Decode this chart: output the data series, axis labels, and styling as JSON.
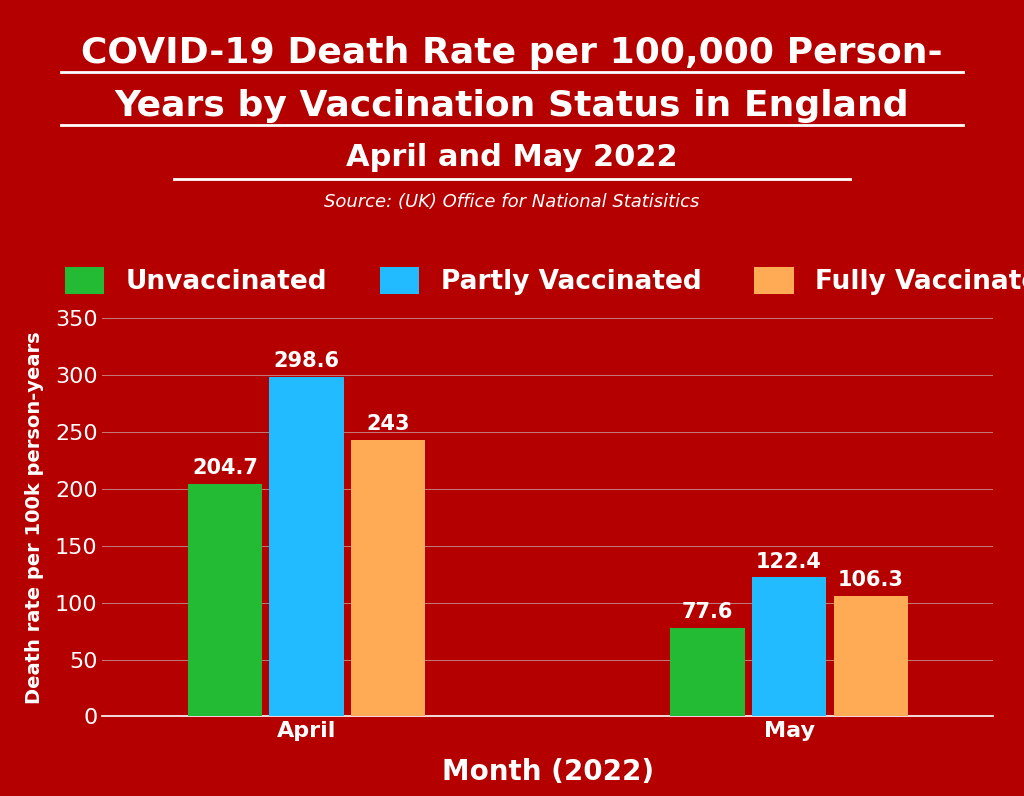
{
  "title_line1": "COVID-19 Death Rate per 100,000 Person-",
  "title_line2": "Years by Vaccination Status in England",
  "title_line3": "April and May 2022",
  "source": "Source: (UK) Office for National Statisitics",
  "xlabel": "Month (2022)",
  "ylabel": "Death rate per 100k person-years",
  "background_color": "#b50000",
  "plot_bg_color": "#b50000",
  "bar_colors": [
    "#22bb33",
    "#22bbff",
    "#ffaa55"
  ],
  "legend_labels": [
    "Unvaccinated",
    "Partly Vaccinated",
    "Fully Vaccinated"
  ],
  "months": [
    "April",
    "May"
  ],
  "values": {
    "April": [
      204.7,
      298.6,
      243.0
    ],
    "May": [
      77.6,
      122.4,
      106.3
    ]
  },
  "ylim": [
    0,
    350
  ],
  "yticks": [
    0,
    50,
    100,
    150,
    200,
    250,
    300,
    350
  ],
  "title_color": "#ffffff",
  "axis_color": "#ffffff",
  "text_color": "#ffffff",
  "grid_color": "#cccccc",
  "bar_label_fontsize": 15,
  "title_fontsize1": 26,
  "title_fontsize2": 26,
  "title_fontsize3": 22,
  "source_fontsize": 13,
  "legend_fontsize": 19,
  "tick_fontsize": 16,
  "xlabel_fontsize": 20,
  "ylabel_fontsize": 14
}
